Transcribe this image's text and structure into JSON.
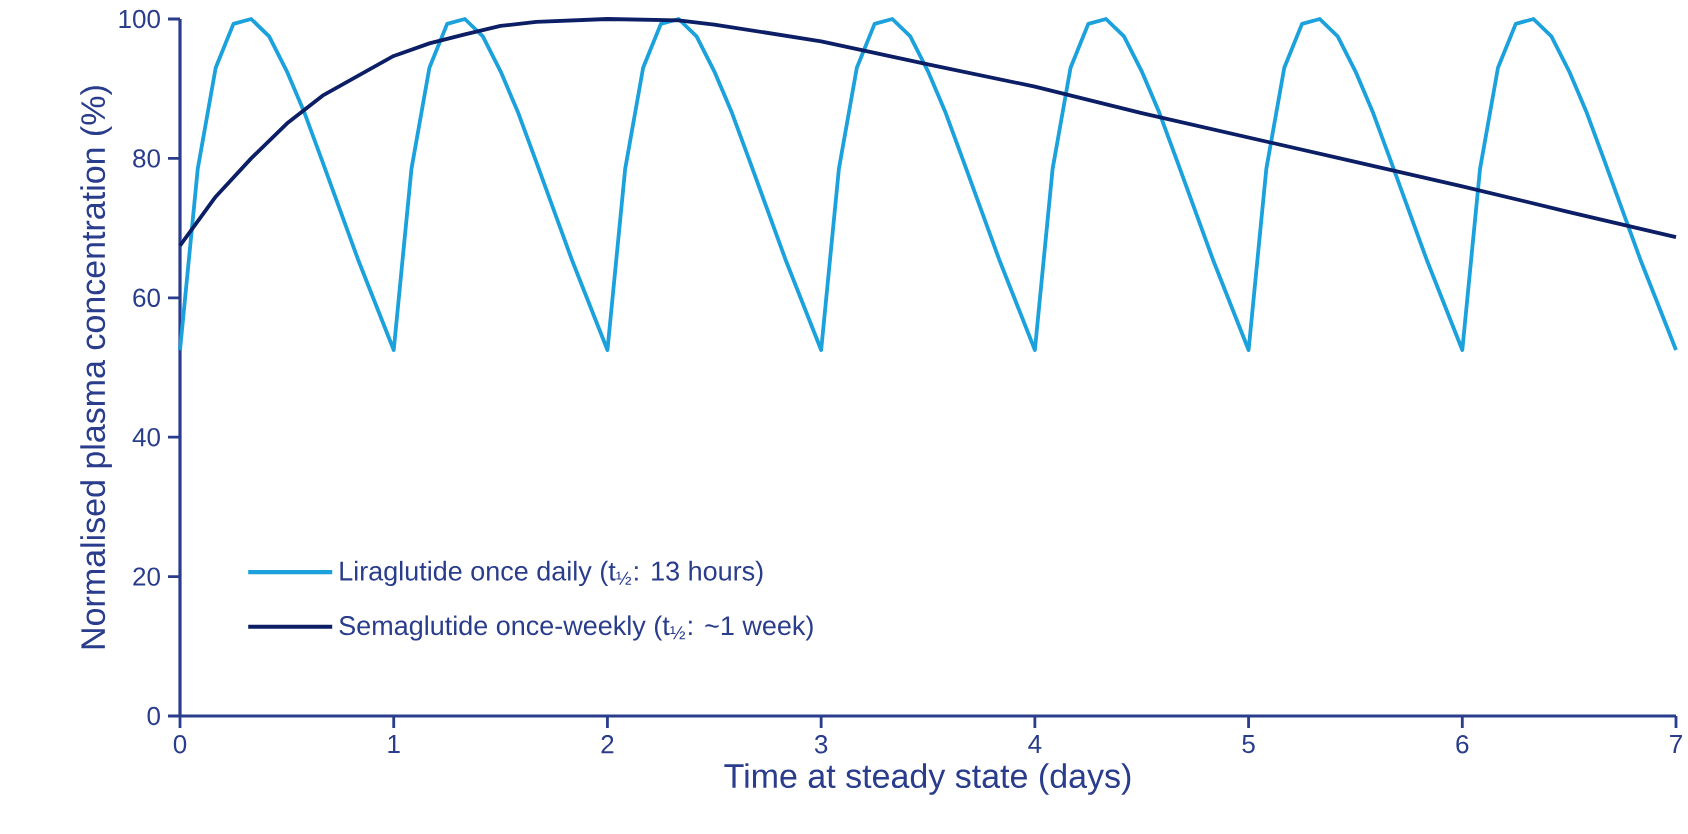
{
  "chart_data": {
    "type": "line",
    "xlabel": "Time at steady state (days)",
    "ylabel": "Normalised plasma concentration (%)",
    "xlim": [
      0,
      7
    ],
    "ylim": [
      0,
      100
    ],
    "xticks": [
      0,
      1,
      2,
      3,
      4,
      5,
      6,
      7
    ],
    "yticks": [
      0,
      20,
      40,
      60,
      80,
      100
    ],
    "legend": "bottom left",
    "series": [
      {
        "name": "Liraglutide once daily (t$_{½}$: 13 hours)",
        "color": "#1ba1dc",
        "x": [
          0,
          0.083,
          0.167,
          0.25,
          0.333,
          0.417,
          0.5,
          0.583,
          0.667,
          0.833,
          1,
          1.083,
          1.167,
          1.25,
          1.333,
          1.417,
          1.5,
          1.583,
          1.667,
          1.833,
          2,
          2.083,
          2.167,
          2.25,
          2.333,
          2.417,
          2.5,
          2.583,
          2.667,
          2.833,
          3,
          3.083,
          3.167,
          3.25,
          3.333,
          3.417,
          3.5,
          3.583,
          3.667,
          3.833,
          4,
          4.083,
          4.167,
          4.25,
          4.333,
          4.417,
          4.5,
          4.583,
          4.667,
          4.833,
          5,
          5.083,
          5.167,
          5.25,
          5.333,
          5.417,
          5.5,
          5.583,
          5.667,
          5.833,
          6,
          6.083,
          6.167,
          6.25,
          6.333,
          6.417,
          6.5,
          6.583,
          6.667,
          6.833,
          7
        ],
        "values": [
          52.5,
          78.5,
          93,
          99.3,
          100,
          97.5,
          92.5,
          86.5,
          79.5,
          65.5,
          52.5,
          78.5,
          93,
          99.3,
          100,
          97.5,
          92.5,
          86.5,
          79.5,
          65.5,
          52.5,
          78.5,
          93,
          99.3,
          100,
          97.5,
          92.5,
          86.5,
          79.5,
          65.5,
          52.5,
          78.5,
          93,
          99.3,
          100,
          97.5,
          92.5,
          86.5,
          79.5,
          65.5,
          52.5,
          78.5,
          93,
          99.3,
          100,
          97.5,
          92.5,
          86.5,
          79.5,
          65.5,
          52.5,
          78.5,
          93,
          99.3,
          100,
          97.5,
          92.5,
          86.5,
          79.5,
          65.5,
          52.5,
          78.5,
          93,
          99.3,
          100,
          97.5,
          92.5,
          86.5,
          79.5,
          65.5,
          52.5
        ]
      },
      {
        "name": "Semaglutide once-weekly (t$_{½}$: ~1 week)",
        "color": "#0c1f66",
        "x": [
          0,
          0.167,
          0.333,
          0.5,
          0.667,
          1,
          1.167,
          1.333,
          1.5,
          1.667,
          2,
          2.333,
          2.5,
          3,
          3.5,
          4,
          4.5,
          5,
          5.5,
          6,
          6.5,
          7
        ],
        "values": [
          67.5,
          74.5,
          80,
          85,
          89,
          94.7,
          96.5,
          97.8,
          99,
          99.6,
          100,
          99.8,
          99.2,
          96.8,
          93.5,
          90.3,
          86.5,
          83,
          79.5,
          76,
          72.3,
          68.7
        ]
      }
    ]
  }
}
